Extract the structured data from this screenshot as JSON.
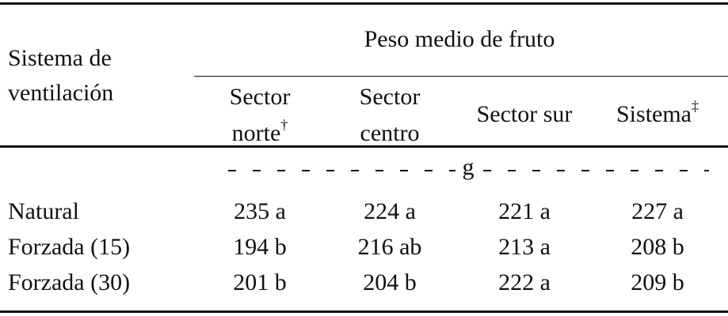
{
  "table": {
    "row_header": "Sistema de ventilación",
    "group_header": "Peso medio de fruto",
    "columns": [
      {
        "text": "Sector norte",
        "mark": "†"
      },
      {
        "text": "Sector centro"
      },
      {
        "text": "Sector sur"
      },
      {
        "text": "Sistema",
        "mark": "‡"
      }
    ],
    "unit": "g",
    "rows": [
      [
        "Natural",
        "235 a",
        "224 a",
        "221 a",
        "227 a"
      ],
      [
        "Forzada (15)",
        "194 b",
        "216 ab",
        "213 a",
        "208 b"
      ],
      [
        "Forzada (30)",
        "201 b",
        "204 b",
        "222 a",
        "209 b"
      ]
    ]
  }
}
